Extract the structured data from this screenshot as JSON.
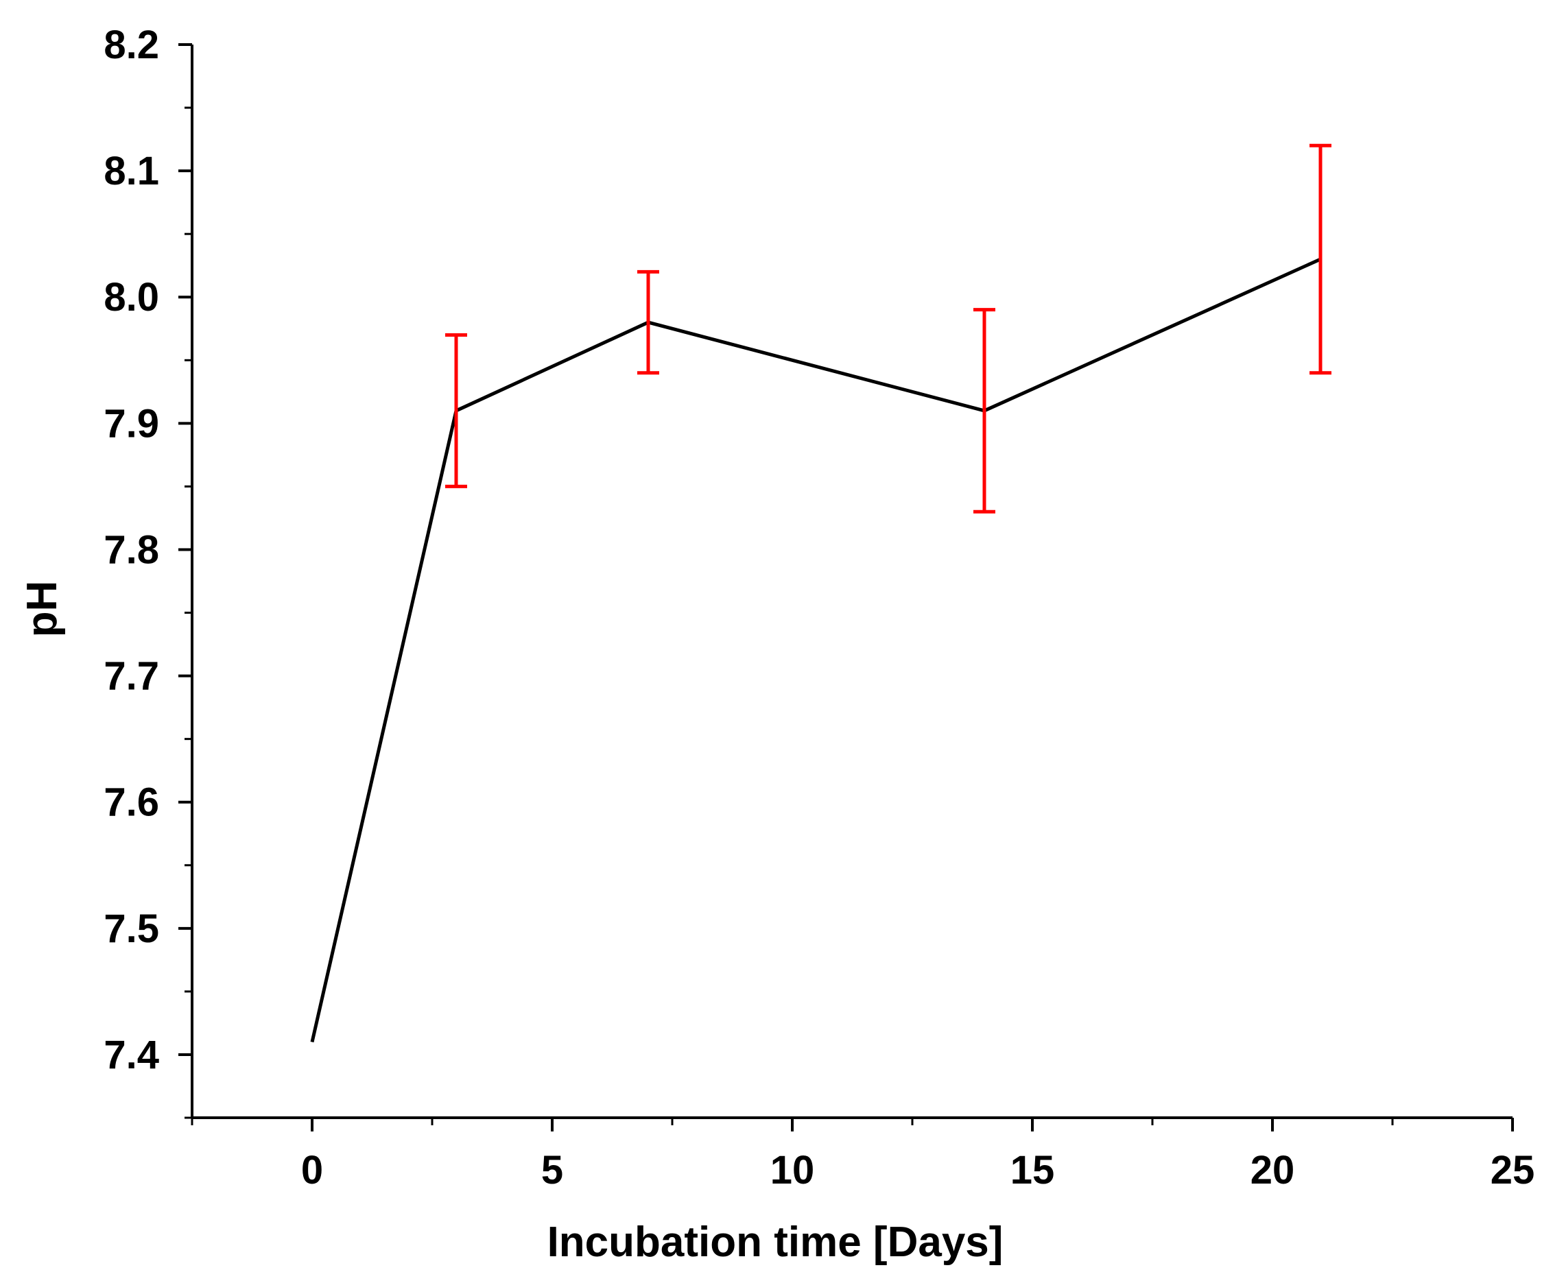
{
  "chart_data": {
    "type": "line",
    "title": "",
    "xlabel": "Incubation time [Days]",
    "ylabel": "pH",
    "xlim": [
      -2.5,
      25
    ],
    "ylim": [
      7.35,
      8.2
    ],
    "x_ticks": [
      0,
      5,
      10,
      15,
      20,
      25
    ],
    "x_tick_labels": [
      "0",
      "5",
      "10",
      "15",
      "20",
      "25"
    ],
    "x_minor_ticks": [
      -2.5,
      2.5,
      7.5,
      12.5,
      17.5,
      22.5
    ],
    "y_ticks": [
      7.4,
      7.5,
      7.6,
      7.7,
      7.8,
      7.9,
      8.0,
      8.1,
      8.2
    ],
    "y_tick_labels": [
      "7.4",
      "7.5",
      "7.6",
      "7.7",
      "7.8",
      "7.9",
      "8.0",
      "8.1",
      "8.2"
    ],
    "y_minor_ticks": [
      7.35,
      7.45,
      7.55,
      7.65,
      7.75,
      7.85,
      7.95,
      8.05,
      8.15
    ],
    "grid": false,
    "series": [
      {
        "name": "pH",
        "color": "#000000",
        "error_color": "#ff0000",
        "points": [
          {
            "x": 0,
            "y": 7.41
          },
          {
            "x": 3,
            "y": 7.91,
            "err_low": 7.85,
            "err_high": 7.97
          },
          {
            "x": 7,
            "y": 7.98,
            "err_low": 7.94,
            "err_high": 8.02
          },
          {
            "x": 14,
            "y": 7.91,
            "err_low": 7.83,
            "err_high": 7.99
          },
          {
            "x": 21,
            "y": 8.03,
            "err_low": 7.94,
            "err_high": 8.12
          }
        ]
      }
    ]
  }
}
